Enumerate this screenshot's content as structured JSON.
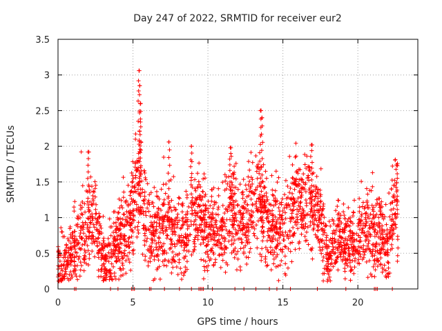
{
  "chart_data": {
    "type": "scatter",
    "title": "Day 247 of 2022, SRMTID for receiver eur2",
    "xlabel": "GPS time / hours",
    "ylabel": "SRMTID / TECUs",
    "xlim": [
      0,
      24
    ],
    "ylim": [
      0,
      3.5
    ],
    "x_ticks": [
      0,
      5,
      10,
      15,
      20
    ],
    "y_ticks": [
      0,
      0.5,
      1,
      1.5,
      2,
      2.5,
      3,
      3.5
    ],
    "grid": true,
    "marker": "+",
    "series_color": "#ff0000",
    "envelope": [
      {
        "x": 0.0,
        "y": 0.3
      },
      {
        "x": 0.5,
        "y": 0.32
      },
      {
        "x": 1.0,
        "y": 0.5
      },
      {
        "x": 1.5,
        "y": 0.7
      },
      {
        "x": 2.0,
        "y": 0.9
      },
      {
        "x": 2.5,
        "y": 0.95
      },
      {
        "x": 2.8,
        "y": 0.5
      },
      {
        "x": 3.2,
        "y": 0.4
      },
      {
        "x": 3.6,
        "y": 0.55
      },
      {
        "x": 4.0,
        "y": 0.7
      },
      {
        "x": 4.5,
        "y": 0.8
      },
      {
        "x": 5.0,
        "y": 1.1
      },
      {
        "x": 5.3,
        "y": 1.6
      },
      {
        "x": 5.6,
        "y": 1.3
      },
      {
        "x": 6.0,
        "y": 0.8
      },
      {
        "x": 6.5,
        "y": 0.8
      },
      {
        "x": 7.0,
        "y": 0.9
      },
      {
        "x": 7.5,
        "y": 0.85
      },
      {
        "x": 8.0,
        "y": 0.7
      },
      {
        "x": 8.5,
        "y": 0.75
      },
      {
        "x": 9.0,
        "y": 1.0
      },
      {
        "x": 9.5,
        "y": 1.0
      },
      {
        "x": 10.0,
        "y": 0.8
      },
      {
        "x": 10.5,
        "y": 0.8
      },
      {
        "x": 11.0,
        "y": 0.85
      },
      {
        "x": 11.5,
        "y": 1.1
      },
      {
        "x": 12.0,
        "y": 0.9
      },
      {
        "x": 12.5,
        "y": 1.0
      },
      {
        "x": 13.0,
        "y": 1.1
      },
      {
        "x": 13.5,
        "y": 1.2
      },
      {
        "x": 14.0,
        "y": 0.9
      },
      {
        "x": 14.5,
        "y": 0.8
      },
      {
        "x": 15.0,
        "y": 0.8
      },
      {
        "x": 15.5,
        "y": 1.0
      },
      {
        "x": 16.0,
        "y": 1.2
      },
      {
        "x": 16.5,
        "y": 1.2
      },
      {
        "x": 17.0,
        "y": 1.1
      },
      {
        "x": 17.5,
        "y": 1.0
      },
      {
        "x": 18.0,
        "y": 0.4
      },
      {
        "x": 18.5,
        "y": 0.7
      },
      {
        "x": 19.0,
        "y": 0.6
      },
      {
        "x": 19.5,
        "y": 0.6
      },
      {
        "x": 20.0,
        "y": 0.7
      },
      {
        "x": 20.5,
        "y": 0.8
      },
      {
        "x": 21.0,
        "y": 0.8
      },
      {
        "x": 21.5,
        "y": 0.8
      },
      {
        "x": 22.0,
        "y": 0.6
      },
      {
        "x": 22.5,
        "y": 1.1
      },
      {
        "x": 22.7,
        "y": 1.0
      }
    ],
    "spikes": [
      {
        "x": 2.0,
        "y": 1.92
      },
      {
        "x": 5.4,
        "y": 3.06
      },
      {
        "x": 5.45,
        "y": 2.85
      },
      {
        "x": 5.5,
        "y": 2.6
      },
      {
        "x": 7.4,
        "y": 2.06
      },
      {
        "x": 8.9,
        "y": 2.0
      },
      {
        "x": 11.5,
        "y": 1.98
      },
      {
        "x": 13.5,
        "y": 2.5
      },
      {
        "x": 13.6,
        "y": 2.4
      },
      {
        "x": 16.9,
        "y": 2.02
      },
      {
        "x": 22.6,
        "y": 1.74
      }
    ],
    "zero_points": [
      1.1,
      1.2,
      3.5,
      4.0,
      4.9,
      5.0,
      5.1,
      6.1,
      6.2,
      7.1,
      8.1,
      8.9,
      9.4,
      9.5,
      9.6,
      9.7,
      10.3,
      11.8,
      12.4,
      13.2,
      14.1,
      14.6,
      15.5,
      17.3,
      19.2,
      21.1,
      21.2,
      21.3,
      22.3
    ],
    "scatter": 0.28,
    "point_count": 2600,
    "seed": 247
  }
}
